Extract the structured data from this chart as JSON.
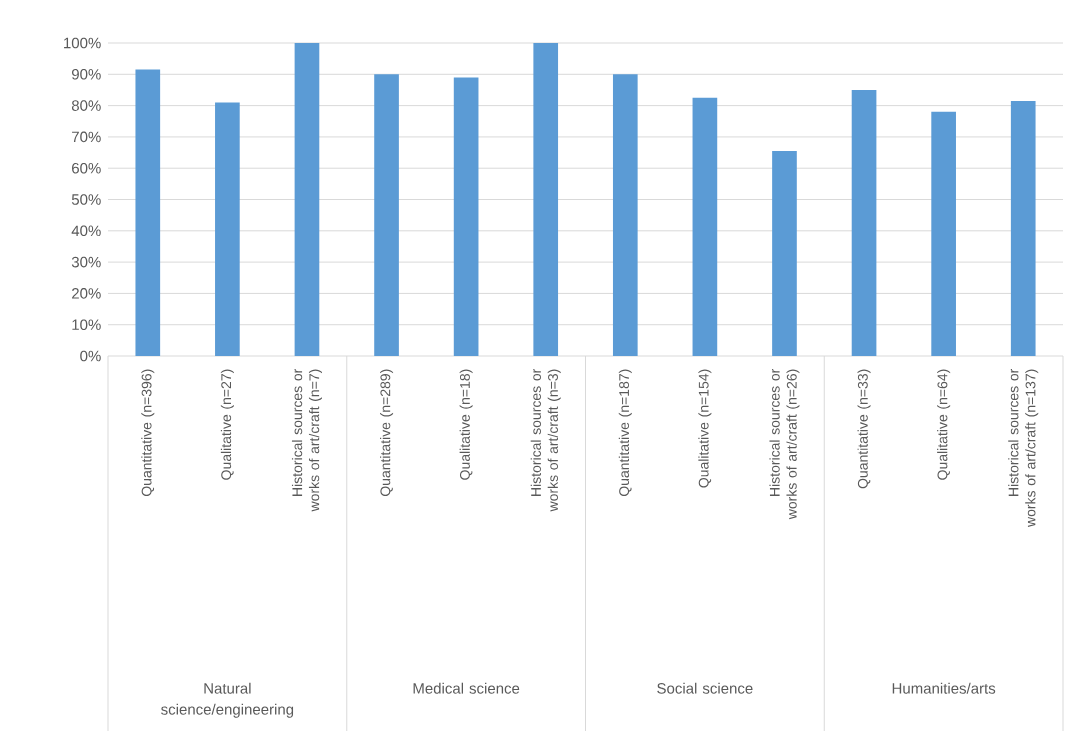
{
  "chart_data": {
    "type": "bar",
    "categories": [
      "Quantitative (n=396)",
      "Qualitative (n=27)",
      "Historical sources or works of art/craft (n=7)",
      "Quantitative (n=289)",
      "Qualitative (n=18)",
      "Historical sources or works of art/craft (n=3)",
      "Quantitative (n=187)",
      "Qualitative (n=154)",
      "Historical sources or works of art/craft (n=26)",
      "Quantitative (n=33)",
      "Qualitative (n=64)",
      "Historical sources or works of art/craft (n=137)"
    ],
    "values": [
      91.5,
      81,
      100,
      90,
      89,
      100,
      90,
      82.5,
      65.5,
      85,
      78,
      81.5
    ],
    "color": "#5b9bd5",
    "ylim": [
      0,
      100
    ],
    "yticks": [
      {
        "value": 0,
        "label": "0%"
      },
      {
        "value": 10,
        "label": "10%"
      },
      {
        "value": 20,
        "label": "20%"
      },
      {
        "value": 30,
        "label": "30%"
      },
      {
        "value": 40,
        "label": "40%"
      },
      {
        "value": 50,
        "label": "50%"
      },
      {
        "value": 60,
        "label": "60%"
      },
      {
        "value": 70,
        "label": "70%"
      },
      {
        "value": 80,
        "label": "80%"
      },
      {
        "value": 90,
        "label": "90%"
      },
      {
        "value": 100,
        "label": "100%"
      }
    ],
    "grid": "y",
    "annotations": [
      "Natural science/engineering",
      "Medical science",
      "Social science",
      "Humanities/arts"
    ]
  }
}
